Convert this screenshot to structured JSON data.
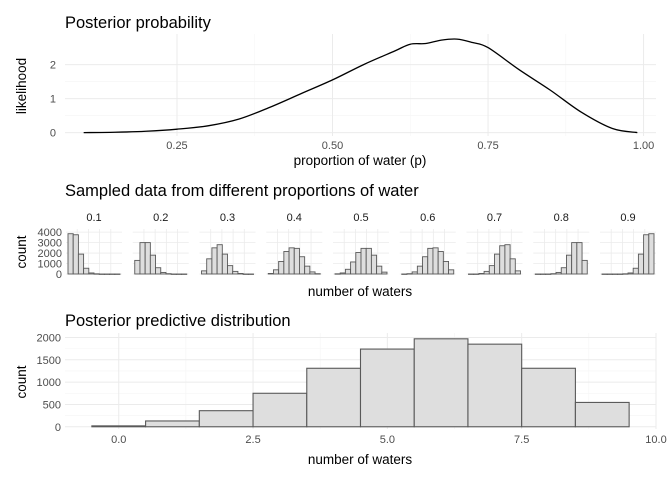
{
  "chart_data": [
    {
      "type": "line",
      "title": "Posterior probability",
      "xlabel": "proportion of water (p)",
      "ylabel": "likelihood",
      "xlim": [
        0.07,
        1.02
      ],
      "ylim": [
        -0.1,
        2.9
      ],
      "xticks": [
        0.25,
        0.5,
        0.75,
        1.0
      ],
      "xtick_labels": [
        "0.25",
        "0.50",
        "0.75",
        "1.00"
      ],
      "yticks": [
        0,
        1,
        2
      ],
      "ytick_labels": [
        "0",
        "1",
        "2"
      ],
      "grid": true,
      "series": [
        {
          "x": [
            0.1,
            0.15,
            0.2,
            0.25,
            0.3,
            0.35,
            0.4,
            0.45,
            0.5,
            0.55,
            0.6,
            0.625,
            0.65,
            0.675,
            0.7,
            0.725,
            0.75,
            0.8,
            0.85,
            0.9,
            0.95,
            0.99
          ],
          "y": [
            0.0,
            0.01,
            0.04,
            0.1,
            0.2,
            0.4,
            0.75,
            1.15,
            1.55,
            2.0,
            2.4,
            2.6,
            2.62,
            2.72,
            2.75,
            2.65,
            2.5,
            1.85,
            1.25,
            0.6,
            0.12,
            0.0
          ]
        }
      ]
    },
    {
      "type": "bar",
      "title": "Sampled data from different proportions of water",
      "xlabel": "number of waters",
      "ylabel": "count",
      "ylim": [
        0,
        4300
      ],
      "yticks": [
        0,
        1000,
        2000,
        3000,
        4000
      ],
      "ytick_labels": [
        "0",
        "1000",
        "2000",
        "3000",
        "4000"
      ],
      "grid": true,
      "facets": [
        {
          "label": "0.1",
          "values": [
            3850,
            3750,
            1900,
            550,
            100,
            20,
            0,
            0,
            0,
            0
          ]
        },
        {
          "label": "0.2",
          "values": [
            1300,
            3000,
            3000,
            1800,
            600,
            150,
            30,
            0,
            0,
            0
          ]
        },
        {
          "label": "0.3",
          "values": [
            300,
            1450,
            2500,
            2800,
            1900,
            800,
            250,
            50,
            0,
            0
          ]
        },
        {
          "label": "0.4",
          "values": [
            50,
            400,
            1200,
            2150,
            2500,
            2450,
            1650,
            750,
            200,
            30
          ]
        },
        {
          "label": "0.5",
          "values": [
            20,
            100,
            450,
            1150,
            2050,
            2450,
            2450,
            1800,
            750,
            180
          ]
        },
        {
          "label": "0.6",
          "values": [
            0,
            30,
            200,
            750,
            1650,
            2450,
            2500,
            2150,
            1200,
            400
          ]
        },
        {
          "label": "0.7",
          "values": [
            0,
            0,
            50,
            250,
            800,
            1900,
            2700,
            2800,
            1450,
            300
          ]
        },
        {
          "label": "0.8",
          "values": [
            0,
            0,
            0,
            30,
            150,
            600,
            1800,
            3000,
            3000,
            1300
          ]
        },
        {
          "label": "0.9",
          "values": [
            0,
            0,
            0,
            0,
            20,
            100,
            550,
            1900,
            3750,
            3850
          ]
        }
      ]
    },
    {
      "type": "bar",
      "title": "Posterior predictive distribution",
      "xlabel": "number of waters",
      "ylabel": "count",
      "xlim": [
        -1.0,
        10.0
      ],
      "ylim": [
        -50,
        2100
      ],
      "xticks": [
        0,
        2.5,
        5,
        7.5,
        10
      ],
      "xtick_labels": [
        "0.0",
        "2.5",
        "5.0",
        "7.5",
        "10.0"
      ],
      "yticks": [
        0,
        500,
        1000,
        1500,
        2000
      ],
      "ytick_labels": [
        "0",
        "500",
        "1000",
        "1500",
        "2000"
      ],
      "grid": true,
      "categories": [
        0,
        1,
        2,
        3,
        4,
        5,
        6,
        7,
        8,
        9
      ],
      "values": [
        20,
        130,
        360,
        750,
        1310,
        1740,
        1970,
        1850,
        1310,
        545
      ]
    }
  ]
}
